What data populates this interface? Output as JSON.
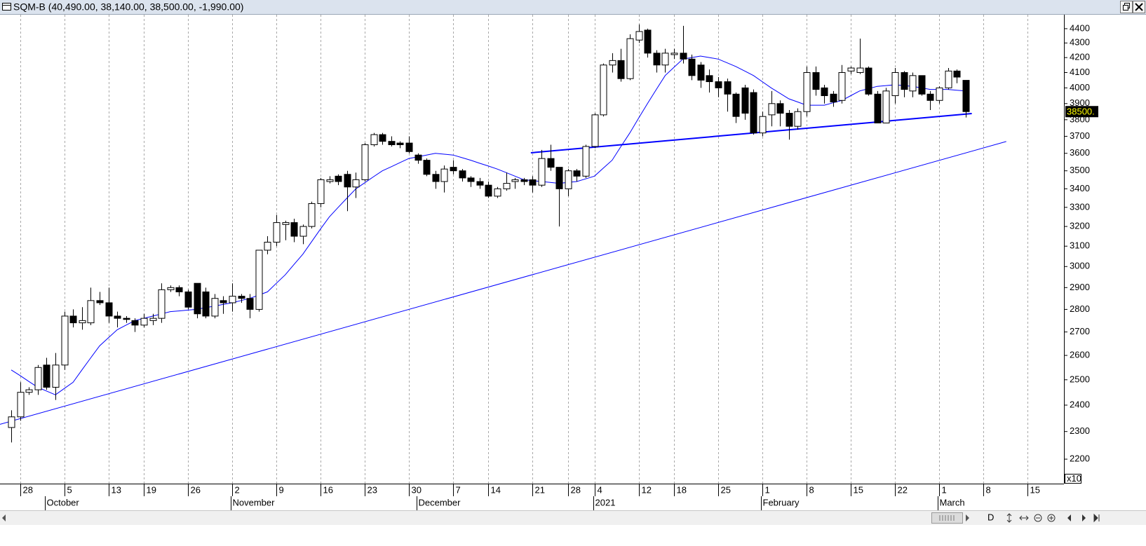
{
  "chart_data": {
    "type": "candlestick",
    "title": "SQM-B (40,490.00, 38,140.00, 38,500.00, -1,990.00)",
    "log_scale": true,
    "ylim": [
      2115,
      4495
    ],
    "yticks": [
      2200,
      2300,
      2400,
      2500,
      2600,
      2700,
      2800,
      2900,
      3000,
      3100,
      3200,
      3300,
      3400,
      3500,
      3600,
      3700,
      3800,
      3900,
      4000,
      4100,
      4200,
      4300,
      4400
    ],
    "scale_label": "x10",
    "last_price": {
      "value": 3850,
      "label": "38500."
    },
    "categories": [
      null,
      "28",
      null,
      null,
      null,
      null,
      "5",
      null,
      null,
      null,
      null,
      "13",
      null,
      null,
      null,
      "19",
      null,
      null,
      null,
      null,
      "26",
      null,
      null,
      null,
      null,
      "2",
      null,
      null,
      null,
      null,
      "9",
      null,
      null,
      null,
      null,
      "16",
      null,
      null,
      null,
      null,
      "23",
      null,
      null,
      null,
      null,
      "30",
      null,
      null,
      null,
      null,
      "7",
      null,
      null,
      null,
      "14",
      null,
      null,
      null,
      null,
      "21",
      null,
      null,
      null,
      "28",
      null,
      null,
      "4",
      null,
      null,
      null,
      null,
      "12",
      null,
      null,
      null,
      "18",
      null,
      null,
      null,
      null,
      "25",
      null,
      null,
      null,
      null,
      "1",
      null,
      null,
      null,
      null,
      "8",
      null,
      null,
      null,
      null,
      "15",
      null,
      null,
      null,
      null,
      "22",
      null,
      null,
      null,
      null,
      "1",
      null,
      null,
      null,
      null,
      "8",
      null,
      null,
      null,
      null,
      "15",
      null,
      null,
      null
    ],
    "months": [
      null,
      null,
      null,
      null,
      "October",
      null,
      null,
      null,
      null,
      null,
      null,
      null,
      null,
      null,
      null,
      null,
      null,
      null,
      null,
      null,
      null,
      null,
      null,
      null,
      null,
      "November",
      null,
      null,
      null,
      null,
      null,
      null,
      null,
      null,
      null,
      null,
      null,
      null,
      null,
      null,
      null,
      null,
      null,
      null,
      null,
      null,
      "December",
      null,
      null,
      null,
      null,
      null,
      null,
      null,
      null,
      null,
      null,
      null,
      null,
      null,
      null,
      null,
      null,
      null,
      null,
      null,
      "2021",
      null,
      null,
      null,
      null,
      null,
      null,
      null,
      null,
      null,
      null,
      null,
      null,
      null,
      null,
      null,
      null,
      null,
      null,
      "February",
      null,
      null,
      null,
      null,
      null,
      null,
      null,
      null,
      null,
      null,
      null,
      null,
      null,
      null,
      null,
      null,
      null,
      null,
      null,
      "March",
      null,
      null,
      null,
      null,
      null,
      null,
      null,
      null,
      null,
      null,
      null,
      null,
      null
    ],
    "ohlc": {
      "up_color": "#ffffff",
      "down_color": "#000000",
      "open": [
        2315,
        2355,
        2450,
        2460,
        2560,
        2470,
        2560,
        2770,
        2740,
        2740,
        2840,
        2830,
        2770,
        2760,
        2750,
        2730,
        2750,
        2760,
        2890,
        2900,
        2880,
        2920,
        2880,
        2770,
        2840,
        2830,
        2860,
        2850,
        2800,
        3080,
        3120,
        3210,
        3220,
        3150,
        3200,
        3320,
        3440,
        3470,
        3480,
        3410,
        3450,
        3650,
        3710,
        3670,
        3660,
        3660,
        3590,
        3560,
        3480,
        3440,
        3520,
        3500,
        3460,
        3440,
        3420,
        3360,
        3400,
        3440,
        3450,
        3450,
        3420,
        3570,
        3520,
        3400,
        3500,
        3470,
        3640,
        3830,
        4150,
        4180,
        4060,
        4320,
        4390,
        4230,
        4150,
        4220,
        4230,
        4190,
        4150,
        4080,
        4040,
        4040,
        3960,
        4000,
        3970,
        3720,
        3830,
        3900,
        3840,
        3760,
        3850,
        4100,
        4000,
        3960,
        3920,
        4110,
        4100,
        4130,
        3960,
        3780,
        3950,
        4100,
        3980,
        4080,
        3960,
        3920,
        4000,
        4110,
        4049,
        null,
        null,
        null,
        null,
        null,
        null,
        null,
        null,
        null,
        null
      ],
      "high": [
        2380,
        2490,
        2470,
        2560,
        2590,
        2610,
        2790,
        2800,
        2810,
        2900,
        2880,
        2900,
        2790,
        2770,
        2760,
        2780,
        2780,
        2920,
        2910,
        2910,
        2890,
        2920,
        2900,
        2870,
        2860,
        2920,
        2870,
        2870,
        3080,
        3150,
        3260,
        3230,
        3240,
        3210,
        3330,
        3460,
        3470,
        3480,
        3500,
        3490,
        3660,
        3720,
        3720,
        3700,
        3670,
        3700,
        3600,
        3570,
        3500,
        3530,
        3560,
        3510,
        3470,
        3460,
        3440,
        3410,
        3490,
        3460,
        3460,
        3470,
        3620,
        3650,
        3520,
        3510,
        3510,
        3650,
        3840,
        4160,
        4230,
        4260,
        4360,
        4430,
        4400,
        4250,
        4260,
        4260,
        4420,
        4220,
        4170,
        4120,
        4070,
        4060,
        3970,
        4020,
        3990,
        3850,
        3980,
        3920,
        3860,
        3870,
        4140,
        4140,
        4020,
        3980,
        4150,
        4140,
        4330,
        4140,
        3980,
        4000,
        4130,
        4110,
        4100,
        4080,
        3980,
        4010,
        4130,
        4120,
        4049,
        null,
        null,
        null,
        null,
        null,
        null,
        null,
        null,
        null,
        null
      ],
      "low": [
        2260,
        2340,
        2440,
        2440,
        2460,
        2420,
        2540,
        2720,
        2710,
        2730,
        2820,
        2740,
        2720,
        2740,
        2700,
        2720,
        2730,
        2740,
        2880,
        2860,
        2800,
        2760,
        2760,
        2760,
        2780,
        2790,
        2830,
        2760,
        2790,
        3060,
        3100,
        3130,
        3120,
        3110,
        3190,
        3300,
        3430,
        3420,
        3280,
        3350,
        3440,
        3640,
        3650,
        3640,
        3630,
        3600,
        3540,
        3470,
        3400,
        3380,
        3480,
        3440,
        3410,
        3400,
        3350,
        3350,
        3390,
        3400,
        3420,
        3380,
        3410,
        3500,
        3200,
        3360,
        3440,
        3460,
        3630,
        3820,
        4100,
        4040,
        4050,
        4300,
        4200,
        4100,
        4100,
        4190,
        4160,
        4050,
        4000,
        3970,
        3940,
        3850,
        3780,
        3800,
        3710,
        3700,
        3760,
        3760,
        3680,
        3740,
        3820,
        3950,
        3900,
        3880,
        3900,
        4090,
        4090,
        3950,
        3780,
        3780,
        3900,
        3940,
        3940,
        3950,
        3860,
        3900,
        3990,
        4030,
        3814,
        null,
        null,
        null,
        null,
        null,
        null,
        null,
        null,
        null,
        null
      ],
      "close": [
        2355,
        2450,
        2460,
        2550,
        2470,
        2560,
        2770,
        2740,
        2750,
        2840,
        2830,
        2770,
        2760,
        2755,
        2730,
        2760,
        2760,
        2890,
        2900,
        2880,
        2810,
        2780,
        2770,
        2850,
        2830,
        2860,
        2850,
        2800,
        3080,
        3120,
        3220,
        3220,
        3150,
        3200,
        3320,
        3450,
        3450,
        3440,
        3410,
        3450,
        3650,
        3710,
        3670,
        3650,
        3650,
        3610,
        3560,
        3480,
        3440,
        3510,
        3500,
        3460,
        3440,
        3420,
        3360,
        3400,
        3430,
        3450,
        3440,
        3420,
        3570,
        3520,
        3400,
        3500,
        3470,
        3640,
        3830,
        4150,
        4180,
        4060,
        4330,
        4380,
        4230,
        4150,
        4230,
        4230,
        4190,
        4080,
        4050,
        4040,
        4000,
        3960,
        3820,
        3840,
        3720,
        3820,
        3900,
        3840,
        3760,
        3850,
        4100,
        3990,
        3950,
        3910,
        4100,
        4130,
        4130,
        3960,
        3780,
        3980,
        4100,
        3990,
        4080,
        3960,
        3920,
        4000,
        4110,
        4070,
        3850,
        null,
        null,
        null,
        null,
        null,
        null,
        null,
        null,
        null,
        null
      ]
    },
    "ma": {
      "color": "#0000ff",
      "values": [
        2540,
        2517,
        2493,
        2470,
        2455,
        2440,
        2465,
        2490,
        2540,
        2590,
        2640,
        2675,
        2710,
        2730,
        2750,
        2760,
        2770,
        2780,
        2790,
        2793,
        2797,
        2800,
        2808,
        2815,
        2823,
        2830,
        2840,
        2850,
        2865,
        2880,
        2920,
        2960,
        3010,
        3060,
        3123,
        3187,
        3250,
        3300,
        3350,
        3400,
        3433,
        3467,
        3500,
        3523,
        3547,
        3570,
        3580,
        3590,
        3600,
        3595,
        3590,
        3575,
        3560,
        3543,
        3527,
        3510,
        3490,
        3470,
        3450,
        3445,
        3440,
        3435,
        3430,
        3435,
        3440,
        3455,
        3470,
        3515,
        3560,
        3640,
        3720,
        3810,
        3900,
        3990,
        4080,
        4135,
        4190,
        4200,
        4210,
        4200,
        4190,
        4165,
        4140,
        4110,
        4080,
        4040,
        4000,
        3965,
        3930,
        3910,
        3890,
        3890,
        3890,
        3905,
        3920,
        3950,
        3980,
        3995,
        4010,
        4015,
        4020,
        4015,
        4010,
        4000,
        3990,
        3990,
        3990,
        3985,
        3980,
        null,
        null,
        null,
        null,
        null,
        null,
        null,
        null,
        null,
        null
      ]
    },
    "trendlines": [
      {
        "color": "#0000ff",
        "width": 1,
        "x": [
          -1.27,
          112.6
        ],
        "y": [
          2327,
          3669
        ]
      },
      {
        "color": "#0000ff",
        "width": 2,
        "x": [
          58.8,
          108.7
        ],
        "y": [
          3603,
          3838
        ]
      }
    ]
  },
  "toolbar": {
    "label": "D"
  }
}
